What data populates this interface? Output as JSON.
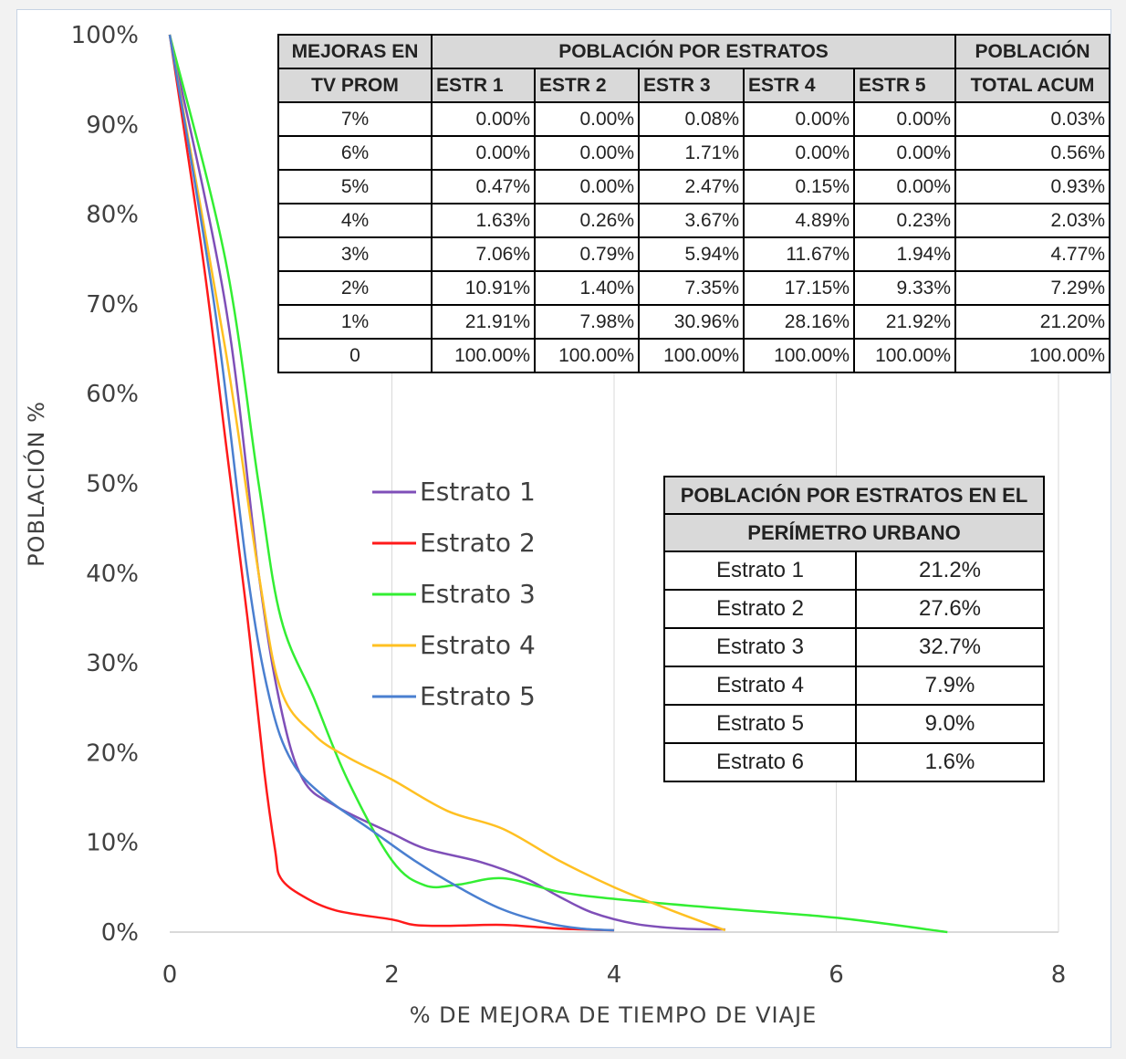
{
  "chart_data": {
    "type": "line",
    "xlabel": "% DE MEJORA DE TIEMPO DE VIAJE",
    "ylabel": "POBLACIÓN %",
    "xlim": [
      0,
      8
    ],
    "ylim": [
      0,
      100
    ],
    "x_ticks": [
      "0",
      "2",
      "4",
      "6",
      "8"
    ],
    "y_ticks": [
      "0%",
      "10%",
      "20%",
      "30%",
      "40%",
      "50%",
      "60%",
      "70%",
      "80%",
      "90%",
      "100%"
    ],
    "grid": "vertical",
    "legend_position": "center-left",
    "series": [
      {
        "name": "Estrato 1",
        "color": "#7f4fb8",
        "points": [
          [
            0,
            100
          ],
          [
            0.5,
            70
          ],
          [
            0.8,
            40
          ],
          [
            1,
            25
          ],
          [
            1.2,
            17
          ],
          [
            1.5,
            14
          ],
          [
            2,
            11
          ],
          [
            2.3,
            9.3
          ],
          [
            2.8,
            7.8
          ],
          [
            3.2,
            6
          ],
          [
            3.5,
            4
          ],
          [
            3.8,
            2.2
          ],
          [
            4.2,
            0.9
          ],
          [
            4.6,
            0.4
          ],
          [
            5,
            0.3
          ]
        ]
      },
      {
        "name": "Estrato 2",
        "color": "#ff1a1a",
        "points": [
          [
            0,
            100
          ],
          [
            0.3,
            75
          ],
          [
            0.5,
            55
          ],
          [
            0.7,
            35
          ],
          [
            0.85,
            18
          ],
          [
            0.95,
            9
          ],
          [
            1,
            6
          ],
          [
            1.2,
            4
          ],
          [
            1.5,
            2.4
          ],
          [
            2,
            1.4
          ],
          [
            2.2,
            0.8
          ],
          [
            2.5,
            0.7
          ],
          [
            3,
            0.8
          ],
          [
            3.5,
            0.4
          ],
          [
            4,
            0.2
          ]
        ]
      },
      {
        "name": "Estrato 3",
        "color": "#33ee33",
        "points": [
          [
            0,
            100
          ],
          [
            0.5,
            75
          ],
          [
            0.8,
            50
          ],
          [
            1,
            35
          ],
          [
            1.3,
            26
          ],
          [
            1.6,
            17
          ],
          [
            2,
            8
          ],
          [
            2.3,
            5.2
          ],
          [
            2.6,
            5.3
          ],
          [
            3,
            6
          ],
          [
            3.5,
            4.5
          ],
          [
            4,
            3.7
          ],
          [
            5,
            2.6
          ],
          [
            6,
            1.6
          ],
          [
            7,
            0
          ]
        ]
      },
      {
        "name": "Estrato 4",
        "color": "#ffc022",
        "points": [
          [
            0,
            100
          ],
          [
            0.5,
            65
          ],
          [
            0.8,
            40
          ],
          [
            1,
            27
          ],
          [
            1.3,
            22
          ],
          [
            1.6,
            19.5
          ],
          [
            2,
            17
          ],
          [
            2.5,
            13.5
          ],
          [
            3,
            11.5
          ],
          [
            3.5,
            8
          ],
          [
            4,
            5
          ],
          [
            4.5,
            2.5
          ],
          [
            5,
            0.2
          ]
        ]
      },
      {
        "name": "Estrato 5",
        "color": "#4a7fd0",
        "points": [
          [
            0,
            100
          ],
          [
            0.4,
            70
          ],
          [
            0.7,
            40
          ],
          [
            0.9,
            26
          ],
          [
            1.1,
            19
          ],
          [
            1.4,
            15
          ],
          [
            1.8,
            11.5
          ],
          [
            2.2,
            8
          ],
          [
            2.6,
            5
          ],
          [
            3,
            2.5
          ],
          [
            3.4,
            1
          ],
          [
            3.7,
            0.4
          ],
          [
            4,
            0.2
          ]
        ]
      }
    ]
  },
  "improvement_table": {
    "header_row1": {
      "col1": "MEJORAS EN",
      "group": "POBLACIÓN POR ESTRATOS",
      "last": "POBLACIÓN"
    },
    "header_row2": [
      "TV PROM",
      "ESTR 1",
      "ESTR 2",
      "ESTR 3",
      "ESTR 4",
      "ESTR 5",
      "TOTAL ACUM"
    ],
    "rows": [
      [
        "7%",
        "0.00%",
        "0.00%",
        "0.08%",
        "0.00%",
        "0.00%",
        "0.03%"
      ],
      [
        "6%",
        "0.00%",
        "0.00%",
        "1.71%",
        "0.00%",
        "0.00%",
        "0.56%"
      ],
      [
        "5%",
        "0.47%",
        "0.00%",
        "2.47%",
        "0.15%",
        "0.00%",
        "0.93%"
      ],
      [
        "4%",
        "1.63%",
        "0.26%",
        "3.67%",
        "4.89%",
        "0.23%",
        "2.03%"
      ],
      [
        "3%",
        "7.06%",
        "0.79%",
        "5.94%",
        "11.67%",
        "1.94%",
        "4.77%"
      ],
      [
        "2%",
        "10.91%",
        "1.40%",
        "7.35%",
        "17.15%",
        "9.33%",
        "7.29%"
      ],
      [
        "1%",
        "21.91%",
        "7.98%",
        "30.96%",
        "28.16%",
        "21.92%",
        "21.20%"
      ],
      [
        "0",
        "100.00%",
        "100.00%",
        "100.00%",
        "100.00%",
        "100.00%",
        "100.00%"
      ]
    ]
  },
  "urban_table": {
    "title_line1": "POBLACIÓN POR ESTRATOS EN EL",
    "title_line2": "PERÍMETRO URBANO",
    "rows": [
      [
        "Estrato 1",
        "21.2%"
      ],
      [
        "Estrato 2",
        "27.6%"
      ],
      [
        "Estrato 3",
        "32.7%"
      ],
      [
        "Estrato 4",
        "7.9%"
      ],
      [
        "Estrato 5",
        "9.0%"
      ],
      [
        "Estrato 6",
        "1.6%"
      ]
    ]
  }
}
